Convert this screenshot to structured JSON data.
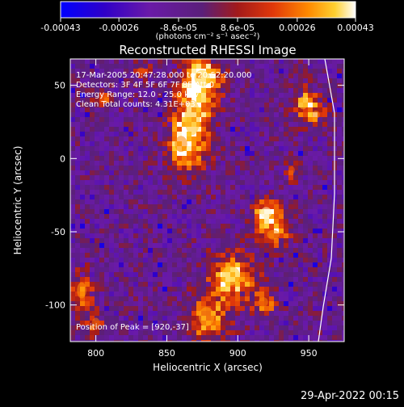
{
  "chart_data": {
    "type": "heatmap",
    "title": "Reconstructed RHESSI Image",
    "xlabel": "Heliocentric X (arcsec)",
    "ylabel": "Heliocentric Y (arcsec)",
    "xlim": [
      782,
      975
    ],
    "ylim": [
      -125,
      68
    ],
    "x_ticks": [
      "800",
      "850",
      "900",
      "950"
    ],
    "x_tick_values": [
      800,
      850,
      900,
      950
    ],
    "y_ticks": [
      "50",
      "0",
      "-50",
      "-100"
    ],
    "y_tick_values": [
      50,
      0,
      -50,
      -100
    ],
    "colorbar": {
      "ticks": [
        "-0.00043",
        "-0.00026",
        "-8.6e-05",
        "8.6e-05",
        "0.00026",
        "0.00043"
      ],
      "tick_values": [
        -0.00043,
        -0.00026,
        -8.6e-05,
        8.6e-05,
        0.00026,
        0.00043
      ],
      "range": [
        -0.00043,
        0.00043
      ],
      "unit_label": "(photons cm⁻² s⁻¹ asec⁻²)"
    },
    "annotations": [
      "17-Mar-2005 20:47:28.000 to 20:52:20.000",
      "Detectors: 3F 4F 5F 6F 7F 8F  Att 0",
      "Energy Range: 12.0 - 25.0 keV",
      "Clean     Total counts: 4.31E+03",
      "Position of Peak = [920,-37]"
    ],
    "peak": {
      "x": 920,
      "y": -37
    },
    "bright_sources": [
      {
        "x": 868,
        "y": 28,
        "rx": 10,
        "ry": 22,
        "amp": 0.8
      },
      {
        "x": 875,
        "y": 55,
        "rx": 10,
        "ry": 10,
        "amp": 0.85
      },
      {
        "x": 860,
        "y": 10,
        "rx": 8,
        "ry": 10,
        "amp": 0.6
      },
      {
        "x": 920,
        "y": -37,
        "rx": 7,
        "ry": 7,
        "amp": 1.0
      },
      {
        "x": 925,
        "y": -52,
        "rx": 8,
        "ry": 6,
        "amp": 0.65
      },
      {
        "x": 895,
        "y": -80,
        "rx": 12,
        "ry": 12,
        "amp": 0.85
      },
      {
        "x": 878,
        "y": -108,
        "rx": 10,
        "ry": 12,
        "amp": 0.7
      },
      {
        "x": 918,
        "y": -98,
        "rx": 6,
        "ry": 6,
        "amp": 0.55
      },
      {
        "x": 946,
        "y": 38,
        "rx": 6,
        "ry": 8,
        "amp": 0.75
      },
      {
        "x": 955,
        "y": 30,
        "rx": 5,
        "ry": 5,
        "amp": 0.6
      },
      {
        "x": 790,
        "y": -90,
        "rx": 6,
        "ry": 10,
        "amp": 0.65
      },
      {
        "x": 800,
        "y": -112,
        "rx": 5,
        "ry": 6,
        "amp": 0.5
      },
      {
        "x": 806,
        "y": 40,
        "rx": 6,
        "ry": 5,
        "amp": 0.45
      },
      {
        "x": 832,
        "y": 60,
        "rx": 5,
        "ry": 4,
        "amp": 0.4
      },
      {
        "x": 938,
        "y": -8,
        "rx": 4,
        "ry": 5,
        "amp": 0.4
      }
    ]
  },
  "footer": {
    "timestamp": "29-Apr-2022 00:15"
  }
}
